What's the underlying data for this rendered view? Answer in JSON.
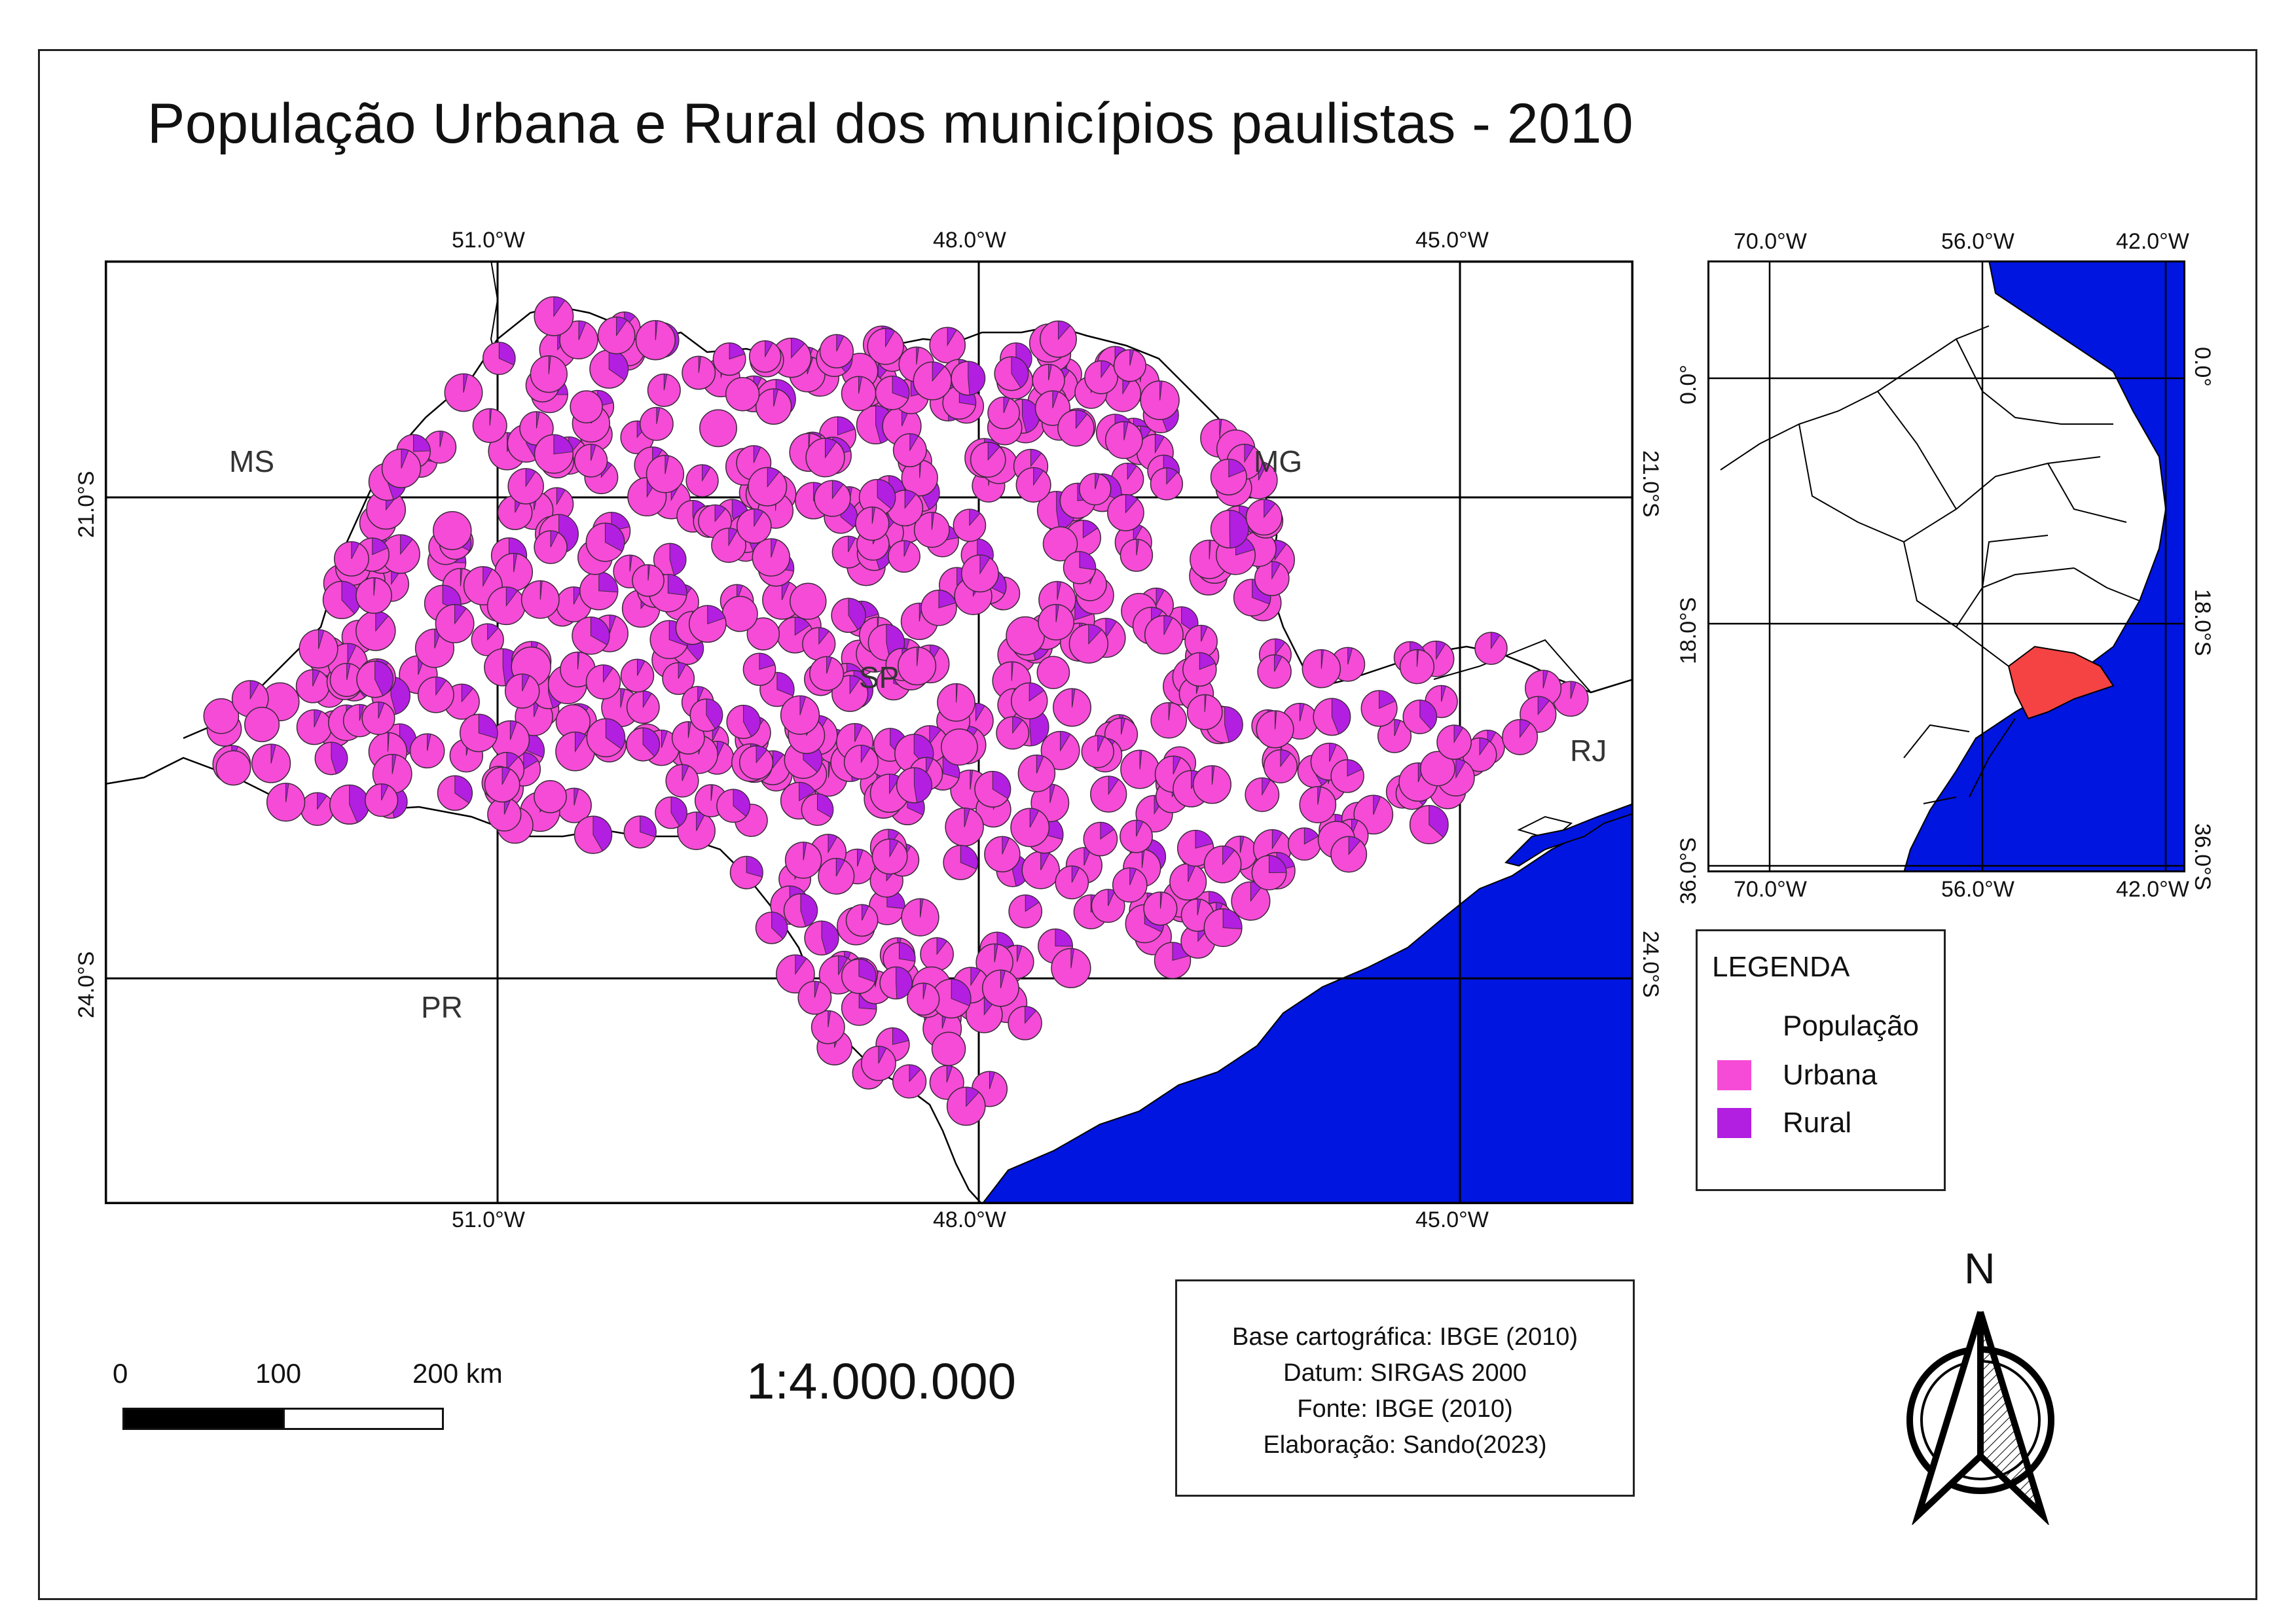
{
  "title": "População Urbana e Rural dos municípios paulistas - 2010",
  "main_map": {
    "top_ticks": [
      "51.0°W",
      "48.0°W",
      "45.0°W"
    ],
    "bottom_ticks": [
      "51.0°W",
      "48.0°W",
      "45.0°W"
    ],
    "left_ticks": [
      "21.0°S",
      "24.0°S"
    ],
    "right_ticks": [
      "21.0°S",
      "24.0°S"
    ],
    "states": {
      "ms": "MS",
      "mg": "MG",
      "sp": "SP",
      "pr": "PR",
      "rj": "RJ"
    },
    "colors": {
      "ocean": "#0015e0",
      "urban": "#f54bd6",
      "rural": "#b21fe0",
      "land": "#ffffff"
    }
  },
  "inset_map": {
    "top_ticks": [
      "70.0°W",
      "56.0°W",
      "42.0°W"
    ],
    "bottom_ticks": [
      "70.0°W",
      "56.0°W",
      "42.0°W"
    ],
    "left_ticks": [
      "0.0°",
      "18.0°S",
      "36.0°S"
    ],
    "right_ticks": [
      "0.0°",
      "18.0°S",
      "36.0°S"
    ],
    "colors": {
      "ocean": "#0015e0",
      "highlight": "#f54343"
    }
  },
  "legend": {
    "title": "LEGENDA",
    "items": [
      {
        "label": "População",
        "color": "#ffffff"
      },
      {
        "label": "Urbana",
        "color": "#f54bd6"
      },
      {
        "label": "Rural",
        "color": "#b21fe0"
      }
    ]
  },
  "info_box": {
    "lines": [
      "Base cartográfica: IBGE (2010)",
      "Datum: SIRGAS 2000",
      "Fonte: IBGE (2010)",
      "Elaboração: Sando(2023)"
    ]
  },
  "scale": {
    "ratio": "1:4.000.000",
    "labels": [
      "0",
      "100",
      "200 km"
    ]
  },
  "north_arrow": {
    "label": "N",
    "icon": "north-arrow-icon"
  }
}
